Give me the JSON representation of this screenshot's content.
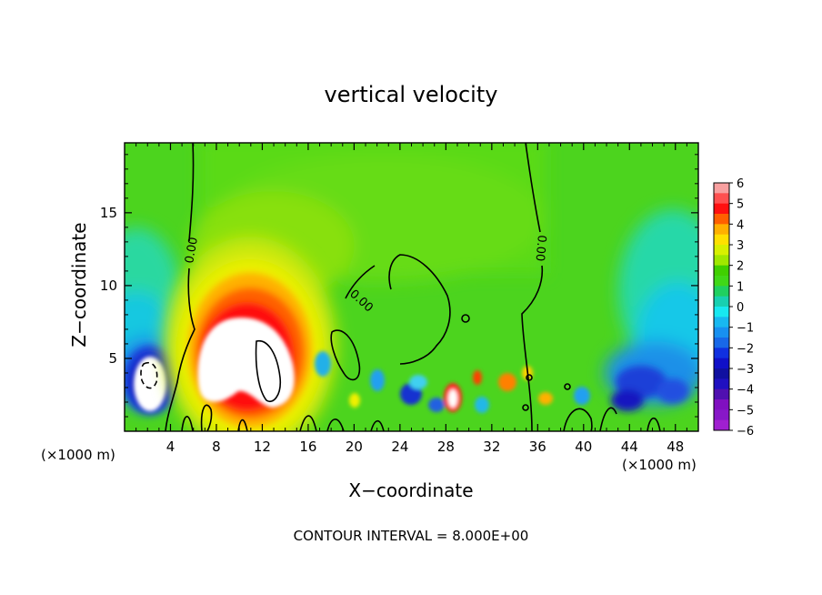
{
  "chart_data": {
    "type": "heatmap",
    "title": "vertical velocity",
    "xlabel": "X−coordinate",
    "ylabel": "Z−coordinate",
    "x_unit_left": "(×1000 m)",
    "x_unit_right": "(×1000 m)",
    "xlim": [
      0,
      50
    ],
    "ylim": [
      0,
      19.8
    ],
    "x_ticks": [
      4,
      8,
      12,
      16,
      20,
      24,
      28,
      32,
      36,
      40,
      44,
      48
    ],
    "y_ticks": [
      5,
      10,
      15
    ],
    "colorbar": {
      "ticks": [
        6,
        5,
        4,
        3,
        2,
        1,
        0,
        -1,
        -2,
        -3,
        -4,
        -5,
        -6
      ],
      "labels": [
        "6",
        "5",
        "4",
        "3",
        "2",
        "1",
        "0",
        "−1",
        "−2",
        "−3",
        "−4",
        "−5",
        "−6"
      ],
      "range": [
        -6,
        6
      ]
    },
    "contour_labels": [
      "0.00",
      "0.00",
      "0.00"
    ],
    "footer": "CONTOUR INTERVAL = 8.000E+00",
    "colors": {
      "background": "#4cd41e",
      "upper_field": "#55d81a",
      "updraft_core": "#ffffff",
      "downdraft_core": "#1010cc"
    }
  }
}
